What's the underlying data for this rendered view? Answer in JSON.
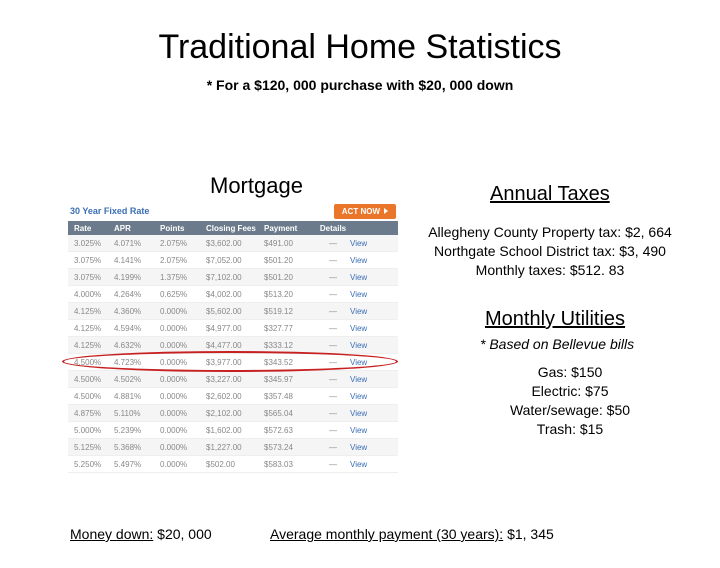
{
  "title": "Traditional Home Statistics",
  "subtitle": "* For a $120, 000 purchase with $20, 000 down",
  "mortgage_label": "Mortgage",
  "annual_taxes_label": "Annual Taxes",
  "taxes": {
    "county": "Allegheny County Property tax: $2, 664",
    "school": "Northgate School District tax: $3, 490",
    "monthly": "Monthly taxes: $512. 83"
  },
  "utilities_label": "Monthly Utilities",
  "utilities_note": "* Based on Bellevue bills",
  "utilities": {
    "gas": "Gas: $150",
    "electric": "Electric: $75",
    "water": "Water/sewage: $50",
    "trash": "Trash: $15"
  },
  "footer": {
    "money_down_label": "Money down:",
    "money_down_value": " $20, 000",
    "avg_label": "Average monthly payment (30 years):",
    "avg_value": " $1, 345"
  },
  "rate_table": {
    "type_label": "30 Year Fixed Rate",
    "actnow_label": "ACT NOW",
    "head": {
      "rate": "Rate",
      "apr": "APR",
      "points": "Points",
      "fees": "Closing Fees",
      "payment": "Payment",
      "details": "Details"
    },
    "link_label": "View",
    "header_bg": "#6b7b8c",
    "actnow_bg": "#e9762b",
    "link_color": "#3b6fb5",
    "highlight_color": "#c62020",
    "highlight_row_index": 7,
    "rows": [
      {
        "rate": "3.025%",
        "apr": "4.071%",
        "points": "2.075%",
        "fees": "$3,602.00",
        "payment": "$491.00"
      },
      {
        "rate": "3.075%",
        "apr": "4.141%",
        "points": "2.075%",
        "fees": "$7,052.00",
        "payment": "$501.20"
      },
      {
        "rate": "3.075%",
        "apr": "4.199%",
        "points": "1.375%",
        "fees": "$7,102.00",
        "payment": "$501.20"
      },
      {
        "rate": "4.000%",
        "apr": "4.264%",
        "points": "0.625%",
        "fees": "$4,002.00",
        "payment": "$513.20"
      },
      {
        "rate": "4.125%",
        "apr": "4.360%",
        "points": "0.000%",
        "fees": "$5,602.00",
        "payment": "$519.12"
      },
      {
        "rate": "4.125%",
        "apr": "4.594%",
        "points": "0.000%",
        "fees": "$4,977.00",
        "payment": "$327.77"
      },
      {
        "rate": "4.125%",
        "apr": "4.632%",
        "points": "0.000%",
        "fees": "$4,477.00",
        "payment": "$333.12"
      },
      {
        "rate": "4.500%",
        "apr": "4.723%",
        "points": "0.000%",
        "fees": "$3,977.00",
        "payment": "$343.52"
      },
      {
        "rate": "4.500%",
        "apr": "4.502%",
        "points": "0.000%",
        "fees": "$3,227.00",
        "payment": "$345.97"
      },
      {
        "rate": "4.500%",
        "apr": "4.881%",
        "points": "0.000%",
        "fees": "$2,602.00",
        "payment": "$357.48"
      },
      {
        "rate": "4.875%",
        "apr": "5.110%",
        "points": "0.000%",
        "fees": "$2,102.00",
        "payment": "$565.04"
      },
      {
        "rate": "5.000%",
        "apr": "5.239%",
        "points": "0.000%",
        "fees": "$1,602.00",
        "payment": "$572.63"
      },
      {
        "rate": "5.125%",
        "apr": "5.368%",
        "points": "0.000%",
        "fees": "$1,227.00",
        "payment": "$573.24"
      },
      {
        "rate": "5.250%",
        "apr": "5.497%",
        "points": "0.000%",
        "fees": "$502.00",
        "payment": "$583.03"
      }
    ]
  }
}
